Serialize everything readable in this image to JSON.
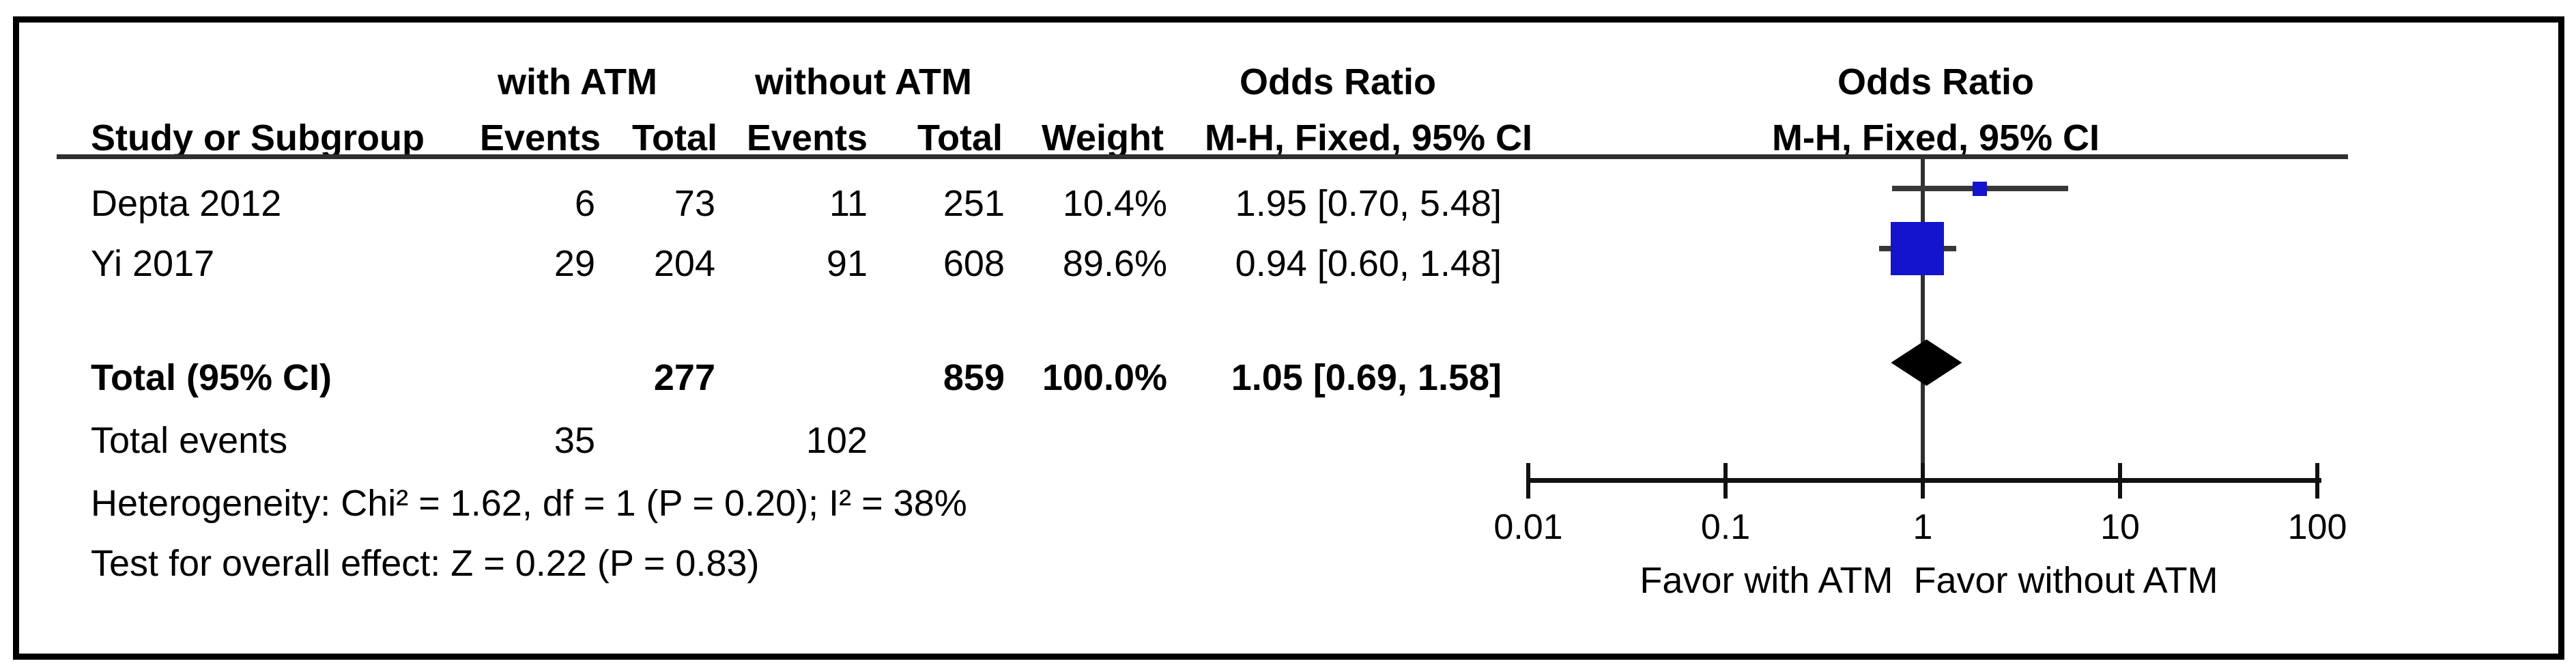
{
  "header": {
    "group1": "with ATM",
    "group2": "without ATM",
    "odds_ratio_left": "Odds Ratio",
    "odds_ratio_right": "Odds Ratio",
    "study_col": "Study or Subgroup",
    "events_col1": "Events",
    "total_col1": "Total",
    "events_col2": "Events",
    "total_col2": "Total",
    "weight_col": "Weight",
    "mh_left": "M-H, Fixed, 95% CI",
    "mh_right": "M-H, Fixed, 95% CI"
  },
  "chart_data": {
    "type": "forest",
    "effect_measure": "Odds Ratio",
    "method": "M-H, Fixed, 95% CI",
    "x_scale": "log10",
    "x_ticks": [
      0.01,
      0.1,
      1,
      10,
      100
    ],
    "x_tick_labels": [
      "0.01",
      "0.1",
      "1",
      "10",
      "100"
    ],
    "null_line": 1,
    "studies": [
      {
        "label": "Depta 2012",
        "events_with": "6",
        "total_with": "73",
        "events_without": "11",
        "total_without": "251",
        "weight": "10.4%",
        "weight_value": 10.4,
        "or": 1.95,
        "ci_low": 0.7,
        "ci_high": 5.48,
        "or_ci_label": "1.95 [0.70, 5.48]"
      },
      {
        "label": "Yi 2017",
        "events_with": "29",
        "total_with": "204",
        "events_without": "91",
        "total_without": "608",
        "weight": "89.6%",
        "weight_value": 89.6,
        "or": 0.94,
        "ci_low": 0.6,
        "ci_high": 1.48,
        "or_ci_label": "0.94 [0.60, 1.48]"
      }
    ],
    "total": {
      "label": "Total (95% CI)",
      "total_with": "277",
      "total_without": "859",
      "weight": "100.0%",
      "or": 1.05,
      "ci_low": 0.69,
      "ci_high": 1.58,
      "or_ci_label": "1.05 [0.69, 1.58]"
    },
    "total_events": {
      "label": "Total events",
      "with": "35",
      "without": "102"
    },
    "heterogeneity": "Heterogeneity: Chi² = 1.62, df = 1 (P = 0.20); I² = 38%",
    "overall_effect": "Test for overall effect: Z = 0.22 (P = 0.83)",
    "favor_left": "Favor with ATM",
    "favor_right": "Favor without ATM",
    "marker_color": "#1414CC",
    "diamond_color": "#000000",
    "legend_position": "none",
    "grid": false
  }
}
